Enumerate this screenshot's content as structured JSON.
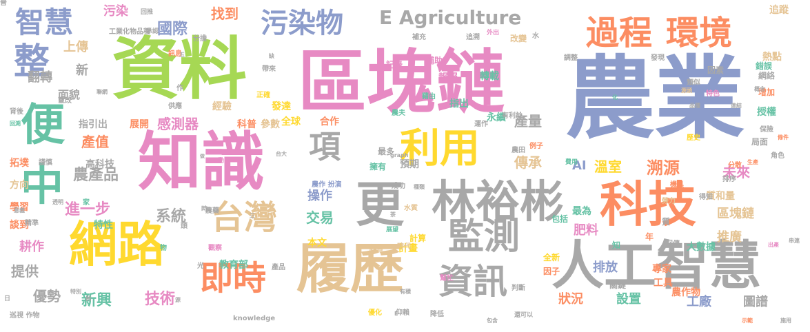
{
  "palette": {
    "blue": "#8c9ccb",
    "green": "#a6d854",
    "pink": "#e78ac3",
    "orange": "#fc8d62",
    "teal": "#66c2a5",
    "yellow": "#ffd92f",
    "tan": "#e5c494",
    "gray": "#a8a8a8"
  },
  "words": [
    {
      "text": "農業",
      "color": "blue",
      "weight": 130
    },
    {
      "text": "區塊鏈",
      "color": "pink",
      "weight": 100
    },
    {
      "text": "資料",
      "color": "green",
      "weight": 98
    },
    {
      "text": "知識",
      "color": "pink",
      "weight": 92
    },
    {
      "text": "人工智慧",
      "color": "gray",
      "weight": 76
    },
    {
      "text": "履歷",
      "color": "tan",
      "weight": 78
    },
    {
      "text": "科技",
      "color": "orange",
      "weight": 70
    },
    {
      "text": "網路",
      "color": "yellow",
      "weight": 70
    },
    {
      "text": "林裕彬",
      "color": "gray",
      "weight": 64
    },
    {
      "text": "更",
      "color": "gray",
      "weight": 70
    },
    {
      "text": "利用",
      "color": "yellow",
      "weight": 58
    },
    {
      "text": "過程",
      "color": "orange",
      "weight": 48
    },
    {
      "text": "環境",
      "color": "orange",
      "weight": 48
    },
    {
      "text": "監測",
      "color": "gray",
      "weight": 52
    },
    {
      "text": "資訊",
      "color": "gray",
      "weight": 50
    },
    {
      "text": "台灣",
      "color": "tan",
      "weight": 48
    },
    {
      "text": "即時",
      "color": "orange",
      "weight": 48
    },
    {
      "text": "便",
      "color": "teal",
      "weight": 64
    },
    {
      "text": "中",
      "color": "teal",
      "weight": 62
    },
    {
      "text": "整",
      "color": "blue",
      "weight": 52
    },
    {
      "text": "項",
      "color": "gray",
      "weight": 46
    },
    {
      "text": "智慧",
      "color": "blue",
      "weight": 42
    },
    {
      "text": "污染物",
      "color": "blue",
      "weight": 40
    },
    {
      "text": "E Agriculture",
      "color": "gray",
      "weight": 28
    },
    {
      "text": "溯源",
      "color": "orange",
      "weight": 24
    },
    {
      "text": "國際",
      "color": "blue",
      "weight": 22
    },
    {
      "text": "找到",
      "color": "orange",
      "weight": 20
    },
    {
      "text": "污染",
      "color": "pink",
      "weight": 18
    },
    {
      "text": "上傳",
      "color": "tan",
      "weight": 18
    },
    {
      "text": "新",
      "color": "gray",
      "weight": 18
    },
    {
      "text": "面貌",
      "color": "gray",
      "weight": 16
    },
    {
      "text": "翻轉",
      "color": "gray",
      "weight": 18
    },
    {
      "text": "拓墣",
      "color": "orange",
      "weight": 14
    },
    {
      "text": "方向",
      "color": "tan",
      "weight": 14
    },
    {
      "text": "學習",
      "color": "orange",
      "weight": 14
    },
    {
      "text": "談到",
      "color": "orange",
      "weight": 14
    },
    {
      "text": "耕作",
      "color": "pink",
      "weight": 18
    },
    {
      "text": "提供",
      "color": "gray",
      "weight": 20
    },
    {
      "text": "優勢",
      "color": "gray",
      "weight": 20
    },
    {
      "text": "新興",
      "color": "teal",
      "weight": 22
    },
    {
      "text": "技術",
      "color": "pink",
      "weight": 22
    },
    {
      "text": "產值",
      "color": "orange",
      "weight": 20
    },
    {
      "text": "農產品",
      "color": "gray",
      "weight": 22
    },
    {
      "text": "進一步",
      "color": "pink",
      "weight": 22
    },
    {
      "text": "系統",
      "color": "gray",
      "weight": 22
    },
    {
      "text": "感測器",
      "color": "pink",
      "weight": 20
    },
    {
      "text": "操作",
      "color": "blue",
      "weight": 18
    },
    {
      "text": "交易",
      "color": "teal",
      "weight": 20
    },
    {
      "text": "全球",
      "color": "yellow",
      "weight": 14
    },
    {
      "text": "合作",
      "color": "orange",
      "weight": 14
    },
    {
      "text": "產量",
      "color": "gray",
      "weight": 20
    },
    {
      "text": "傳承",
      "color": "tan",
      "weight": 20
    },
    {
      "text": "溫室",
      "color": "yellow",
      "weight": 20
    },
    {
      "text": "AI",
      "color": "blue",
      "weight": 18
    },
    {
      "text": "未來",
      "color": "pink",
      "weight": 20
    },
    {
      "text": "區塊鏈",
      "color": "tan",
      "weight": 18
    },
    {
      "text": "推廣",
      "color": "tan",
      "weight": 18
    },
    {
      "text": "肥料",
      "color": "pink",
      "weight": 18
    },
    {
      "text": "排放",
      "color": "blue",
      "weight": 18
    },
    {
      "text": "狀況",
      "color": "orange",
      "weight": 18
    },
    {
      "text": "設置",
      "color": "teal",
      "weight": 18
    },
    {
      "text": "工廠",
      "color": "blue",
      "weight": 18
    },
    {
      "text": "圖譜",
      "color": "gray",
      "weight": 18
    },
    {
      "text": "專家",
      "color": "orange",
      "weight": 14
    },
    {
      "text": "工具",
      "color": "orange",
      "weight": 14
    },
    {
      "text": "大數據",
      "color": "teal",
      "weight": 14
    },
    {
      "text": "追蹤",
      "color": "tan",
      "weight": 14
    },
    {
      "text": "熱點",
      "color": "tan",
      "weight": 14
    },
    {
      "text": "增加",
      "color": "orange",
      "weight": 12
    },
    {
      "text": "授權",
      "color": "teal",
      "weight": 14
    },
    {
      "text": "轉載",
      "color": "teal",
      "weight": 14
    },
    {
      "text": "報報",
      "color": "pink",
      "weight": 14
    },
    {
      "text": "指出",
      "color": "teal",
      "weight": 14
    },
    {
      "text": "永續",
      "color": "teal",
      "weight": 14
    },
    {
      "text": "預期",
      "color": "gray",
      "weight": 14
    },
    {
      "text": "計畫",
      "color": "yellow",
      "weight": 14
    },
    {
      "text": "本文",
      "color": "yellow",
      "weight": 14
    },
    {
      "text": "教育部",
      "color": "teal",
      "weight": 14
    },
    {
      "text": "經驗",
      "color": "tan",
      "weight": 14
    },
    {
      "text": "發達",
      "color": "yellow",
      "weight": 14
    },
    {
      "text": "科普",
      "color": "orange",
      "weight": 14
    },
    {
      "text": "參數",
      "color": "tan",
      "weight": 14
    },
    {
      "text": "展開",
      "color": "orange",
      "weight": 14
    },
    {
      "text": "指引出",
      "color": "gray",
      "weight": 14
    },
    {
      "text": "高科技",
      "color": "gray",
      "weight": 14
    },
    {
      "text": "特性",
      "color": "teal",
      "weight": 14
    },
    {
      "text": "成功",
      "color": "gray",
      "weight": 10
    },
    {
      "text": "農作 扮演",
      "color": "blue",
      "weight": 10
    },
    {
      "text": "包括",
      "color": "teal",
      "weight": 12
    },
    {
      "text": "最為",
      "color": "teal",
      "weight": 14
    },
    {
      "text": "質和量",
      "color": "tan",
      "weight": 14
    },
    {
      "text": "記錄",
      "color": "pink",
      "weight": 12
    },
    {
      "text": "補助",
      "color": "pink",
      "weight": 12
    },
    {
      "text": "改變",
      "color": "tan",
      "weight": 12
    },
    {
      "text": "錯誤",
      "color": "teal",
      "weight": 12
    },
    {
      "text": "因素",
      "color": "gray",
      "weight": 12
    },
    {
      "text": "網絡",
      "color": "gray",
      "weight": 12
    },
    {
      "text": "角色",
      "color": "gray",
      "weight": 10
    },
    {
      "text": "局面",
      "color": "gray",
      "weight": 12
    },
    {
      "text": "保險",
      "color": "gray",
      "weight": 10
    },
    {
      "text": "分散",
      "color": "orange",
      "weight": 10
    },
    {
      "text": "排序",
      "color": "gray",
      "weight": 10
    },
    {
      "text": "勞力",
      "color": "tan",
      "weight": 10
    },
    {
      "text": "得知",
      "color": "gray",
      "weight": 10
    },
    {
      "text": "機具",
      "color": "orange",
      "weight": 10
    },
    {
      "text": "全新",
      "color": "yellow",
      "weight": 12
    },
    {
      "text": "因子",
      "color": "orange",
      "weight": 12
    },
    {
      "text": "關鍵",
      "color": "gray",
      "weight": 12
    },
    {
      "text": "回傳",
      "color": "gray",
      "weight": 10
    },
    {
      "text": "判斷",
      "color": "gray",
      "weight": 10
    },
    {
      "text": "幫忙",
      "color": "pink",
      "weight": 10
    },
    {
      "text": "優化",
      "color": "yellow",
      "weight": 10
    },
    {
      "text": "仰賴",
      "color": "gray",
      "weight": 10
    },
    {
      "text": "降低",
      "color": "gray",
      "weight": 10
    },
    {
      "text": "還可以",
      "color": "gray",
      "weight": 10
    },
    {
      "text": "knowledge",
      "color": "gray",
      "weight": 9
    },
    {
      "text": "巡視 作物",
      "color": "gray",
      "weight": 10
    },
    {
      "text": "回推",
      "color": "gray",
      "weight": 10
    },
    {
      "text": "工業化物品種",
      "color": "gray",
      "weight": 9
    },
    {
      "text": "承認",
      "color": "gray",
      "weight": 10
    },
    {
      "text": "分擔",
      "color": "gray",
      "weight": 9
    },
    {
      "text": "補充",
      "color": "gray",
      "weight": 10
    },
    {
      "text": "追溯",
      "color": "gray",
      "weight": 10
    },
    {
      "text": "外出",
      "color": "pink",
      "weight": 10
    },
    {
      "text": "調整",
      "color": "gray",
      "weight": 9
    },
    {
      "text": "發現",
      "color": "gray",
      "weight": 10
    },
    {
      "text": "運作",
      "color": "gray",
      "weight": 10
    },
    {
      "text": "有利於",
      "color": "gray",
      "weight": 10
    },
    {
      "text": "歷史",
      "color": "yellow",
      "weight": 10
    },
    {
      "text": "特色",
      "color": "pink",
      "weight": 10
    },
    {
      "text": "源頭",
      "color": "tan",
      "weight": 10
    },
    {
      "text": "概念",
      "color": "gray",
      "weight": 8
    },
    {
      "text": "類似",
      "color": "gray",
      "weight": 8
    },
    {
      "text": "條件",
      "color": "orange",
      "weight": 10
    },
    {
      "text": "生產",
      "color": "orange",
      "weight": 8
    },
    {
      "text": "農田",
      "color": "gray",
      "weight": 8
    },
    {
      "text": "例子",
      "color": "orange",
      "weight": 10
    },
    {
      "text": "費用",
      "color": "teal",
      "weight": 10
    },
    {
      "text": "最多",
      "color": "gray",
      "weight": 9
    },
    {
      "text": "擁有",
      "color": "teal",
      "weight": 12
    },
    {
      "text": "家",
      "color": "teal",
      "weight": 12
    },
    {
      "text": "謹慎",
      "color": "gray",
      "weight": 10
    },
    {
      "text": "竄改",
      "color": "gray",
      "weight": 10
    },
    {
      "text": "聯網",
      "color": "gray",
      "weight": 10
    },
    {
      "text": "背後",
      "color": "gray",
      "weight": 8
    },
    {
      "text": "回溯",
      "color": "teal",
      "weight": 10
    },
    {
      "text": "精準",
      "color": "gray",
      "weight": 8
    },
    {
      "text": "透明",
      "color": "gray",
      "weight": 10
    },
    {
      "text": "意義",
      "color": "gray",
      "weight": 8
    },
    {
      "text": "訊息",
      "color": "orange",
      "weight": 8
    },
    {
      "text": "帶來",
      "color": "gray",
      "weight": 10
    },
    {
      "text": "正確",
      "color": "yellow",
      "weight": 10
    },
    {
      "text": "供應",
      "color": "gray",
      "weight": 10
    },
    {
      "text": "藉由",
      "color": "teal",
      "weight": 10
    },
    {
      "text": "農夫",
      "color": "teal",
      "weight": 10
    },
    {
      "text": "物",
      "color": "teal",
      "weight": 10
    },
    {
      "text": "觀察",
      "color": "pink",
      "weight": 10
    },
    {
      "text": "農藥",
      "color": "gray",
      "weight": 10
    },
    {
      "text": "產品",
      "color": "gray",
      "weight": 10
    },
    {
      "text": "經營",
      "color": "tan",
      "weight": 10
    },
    {
      "text": "時代",
      "color": "tan",
      "weight": 10
    },
    {
      "text": "水質",
      "color": "tan",
      "weight": 10
    },
    {
      "text": "計算",
      "color": "yellow",
      "weight": 10
    },
    {
      "text": "展望",
      "color": "teal",
      "weight": 12
    },
    {
      "text": "種類",
      "color": "gray",
      "weight": 9
    },
    {
      "text": "graph",
      "color": "gray",
      "weight": 8
    },
    {
      "text": "特別",
      "color": "gray",
      "weight": 8
    },
    {
      "text": "例",
      "color": "gray",
      "weight": 8
    },
    {
      "text": "日",
      "color": "gray",
      "weight": 8
    },
    {
      "text": "源",
      "color": "gray",
      "weight": 9
    },
    {
      "text": "光",
      "color": "gray",
      "weight": 8
    },
    {
      "text": "時",
      "color": "gray",
      "weight": 10
    },
    {
      "text": "頭",
      "color": "gray",
      "weight": 9
    },
    {
      "text": "動",
      "color": "pink",
      "weight": 10
    },
    {
      "text": "做",
      "color": "gray",
      "weight": 9
    },
    {
      "text": "台大",
      "color": "gray",
      "weight": 7
    },
    {
      "text": "作",
      "color": "gray",
      "weight": 8
    },
    {
      "text": "五",
      "color": "gray",
      "weight": 10
    },
    {
      "text": "缺",
      "color": "gray",
      "weight": 8
    },
    {
      "text": "水",
      "color": "gray",
      "weight": 8
    },
    {
      "text": "化",
      "color": "teal",
      "weight": 10
    },
    {
      "text": "連結",
      "color": "gray",
      "weight": 8
    },
    {
      "text": "品種",
      "color": "gray",
      "weight": 8
    },
    {
      "text": "出產",
      "color": "pink",
      "weight": 8
    },
    {
      "text": "串連",
      "color": "gray",
      "weight": 8
    },
    {
      "text": "施用",
      "color": "gray",
      "weight": 8
    },
    {
      "text": "示範",
      "color": "orange",
      "weight": 8
    },
    {
      "text": "包含",
      "color": "gray",
      "weight": 8
    },
    {
      "text": "農作物",
      "color": "orange",
      "weight": 8
    },
    {
      "text": "知",
      "color": "teal",
      "weight": 14
    },
    {
      "text": "年",
      "color": "orange",
      "weight": 12
    },
    {
      "text": "質",
      "color": "gray",
      "weight": 12
    },
    {
      "text": "E",
      "color": "gray",
      "weight": 12
    },
    {
      "text": "有積",
      "color": "gray",
      "weight": 8
    },
    {
      "text": "茶",
      "color": "gray",
      "weight": 8
    },
    {
      "text": "三",
      "color": "gray",
      "weight": 8
    },
    {
      "text": "普",
      "color": "gray",
      "weight": 8
    }
  ]
}
